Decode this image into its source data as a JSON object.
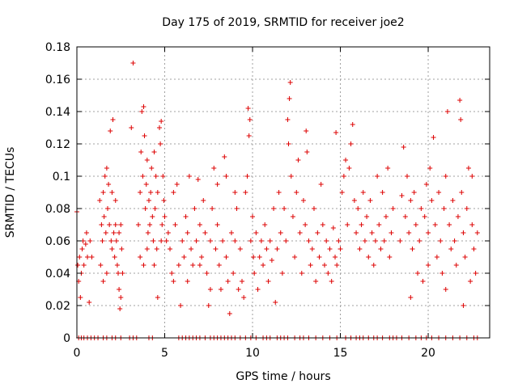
{
  "chart_data": {
    "type": "scatter",
    "title": "Day 175 of 2019, SRMTID for receiver joe2",
    "xlabel": "GPS time / hours",
    "ylabel": "SRMTID / TECUs",
    "xlim": [
      0,
      23.5
    ],
    "ylim": [
      0,
      0.18
    ],
    "xticks": [
      0,
      5,
      10,
      15,
      20
    ],
    "xtick_labels": [
      "0",
      "5",
      "10",
      "15",
      "20"
    ],
    "yticks": [
      0,
      0.02,
      0.04,
      0.06,
      0.08,
      0.1,
      0.12,
      0.14,
      0.16,
      0.18
    ],
    "ytick_labels": [
      "0",
      "0.02",
      "0.04",
      "0.06",
      "0.08",
      "0.1",
      "0.12",
      "0.14",
      "0.16",
      "0.18"
    ],
    "grid": true,
    "marker": "+",
    "series": [
      {
        "name": "SRMTID",
        "color": "#dd0000",
        "points": [
          [
            0.0,
            0.078
          ],
          [
            0.05,
            0.045
          ],
          [
            0.1,
            0.035
          ],
          [
            0.15,
            0.05
          ],
          [
            0.2,
            0.025
          ],
          [
            0.25,
            0.04
          ],
          [
            0.3,
            0.055
          ],
          [
            0.35,
            0.06
          ],
          [
            0.4,
            0.045
          ],
          [
            0.5,
            0.058
          ],
          [
            0.55,
            0.065
          ],
          [
            0.6,
            0.05
          ],
          [
            0.7,
            0.022
          ],
          [
            0.75,
            0.06
          ],
          [
            0.85,
            0.05
          ],
          [
            1.3,
            0.085
          ],
          [
            1.4,
            0.07
          ],
          [
            1.45,
            0.06
          ],
          [
            1.5,
            0.09
          ],
          [
            1.55,
            0.075
          ],
          [
            1.6,
            0.1
          ],
          [
            1.65,
            0.065
          ],
          [
            1.7,
            0.105
          ],
          [
            1.75,
            0.08
          ],
          [
            1.8,
            0.095
          ],
          [
            1.85,
            0.07
          ],
          [
            1.9,
            0.128
          ],
          [
            1.95,
            0.06
          ],
          [
            2.0,
            0.055
          ],
          [
            2.05,
            0.135
          ],
          [
            2.1,
            0.065
          ],
          [
            2.15,
            0.05
          ],
          [
            2.2,
            0.07
          ],
          [
            2.25,
            0.06
          ],
          [
            2.3,
            0.045
          ],
          [
            2.35,
            0.04
          ],
          [
            2.4,
            0.03
          ],
          [
            2.45,
            0.018
          ],
          [
            2.5,
            0.025
          ],
          [
            2.55,
            0.055
          ],
          [
            2.6,
            0.04
          ],
          [
            1.35,
            0.045
          ],
          [
            1.5,
            0.035
          ],
          [
            1.7,
            0.04
          ],
          [
            2.0,
            0.09
          ],
          [
            2.2,
            0.085
          ],
          [
            2.4,
            0.065
          ],
          [
            2.5,
            0.07
          ],
          [
            3.2,
            0.17
          ],
          [
            3.1,
            0.13
          ],
          [
            3.5,
            0.07
          ],
          [
            3.6,
            0.09
          ],
          [
            3.65,
            0.115
          ],
          [
            3.7,
            0.14
          ],
          [
            3.75,
            0.1
          ],
          [
            3.8,
            0.143
          ],
          [
            3.85,
            0.125
          ],
          [
            3.9,
            0.08
          ],
          [
            3.95,
            0.095
          ],
          [
            4.0,
            0.11
          ],
          [
            4.05,
            0.065
          ],
          [
            4.1,
            0.085
          ],
          [
            4.15,
            0.07
          ],
          [
            4.2,
            0.09
          ],
          [
            4.25,
            0.105
          ],
          [
            4.3,
            0.075
          ],
          [
            4.35,
            0.06
          ],
          [
            4.4,
            0.115
          ],
          [
            4.45,
            0.08
          ],
          [
            4.5,
            0.1
          ],
          [
            4.55,
            0.055
          ],
          [
            4.6,
            0.09
          ],
          [
            4.7,
            0.13
          ],
          [
            4.75,
            0.12
          ],
          [
            4.8,
            0.134
          ],
          [
            4.85,
            0.07
          ],
          [
            4.9,
            0.1
          ],
          [
            4.95,
            0.085
          ],
          [
            3.6,
            0.05
          ],
          [
            3.8,
            0.045
          ],
          [
            4.0,
            0.055
          ],
          [
            4.4,
            0.045
          ],
          [
            4.6,
            0.025
          ],
          [
            4.8,
            0.06
          ],
          [
            5.0,
            0.075
          ],
          [
            5.1,
            0.06
          ],
          [
            5.2,
            0.065
          ],
          [
            5.3,
            0.055
          ],
          [
            5.4,
            0.04
          ],
          [
            5.5,
            0.035
          ],
          [
            5.6,
            0.07
          ],
          [
            5.7,
            0.095
          ],
          [
            5.8,
            0.045
          ],
          [
            5.9,
            0.02
          ],
          [
            6.0,
            0.06
          ],
          [
            6.1,
            0.05
          ],
          [
            6.2,
            0.075
          ],
          [
            6.3,
            0.065
          ],
          [
            6.4,
            0.1
          ],
          [
            6.5,
            0.055
          ],
          [
            6.6,
            0.045
          ],
          [
            6.7,
            0.08
          ],
          [
            6.8,
            0.06
          ],
          [
            6.9,
            0.098
          ],
          [
            7.0,
            0.07
          ],
          [
            7.1,
            0.05
          ],
          [
            7.2,
            0.085
          ],
          [
            7.3,
            0.065
          ],
          [
            7.4,
            0.04
          ],
          [
            7.5,
            0.02
          ],
          [
            7.6,
            0.06
          ],
          [
            7.7,
            0.08
          ],
          [
            7.8,
            0.105
          ],
          [
            7.9,
            0.055
          ],
          [
            8.0,
            0.07
          ],
          [
            8.1,
            0.045
          ],
          [
            8.2,
            0.03
          ],
          [
            8.3,
            0.06
          ],
          [
            8.4,
            0.112
          ],
          [
            8.5,
            0.05
          ],
          [
            8.6,
            0.035
          ],
          [
            8.7,
            0.015
          ],
          [
            8.8,
            0.065
          ],
          [
            8.9,
            0.04
          ],
          [
            9.0,
            0.09
          ],
          [
            9.1,
            0.08
          ],
          [
            9.2,
            0.03
          ],
          [
            9.3,
            0.055
          ],
          [
            5.5,
            0.09
          ],
          [
            6.3,
            0.035
          ],
          [
            7.0,
            0.045
          ],
          [
            7.6,
            0.03
          ],
          [
            8.0,
            0.095
          ],
          [
            8.5,
            0.1
          ],
          [
            9.0,
            0.06
          ],
          [
            9.4,
            0.035
          ],
          [
            9.5,
            0.025
          ],
          [
            9.6,
            0.09
          ],
          [
            9.7,
            0.1
          ],
          [
            9.75,
            0.142
          ],
          [
            9.8,
            0.125
          ],
          [
            9.85,
            0.135
          ],
          [
            9.9,
            0.06
          ],
          [
            10.0,
            0.075
          ],
          [
            10.05,
            0.05
          ],
          [
            10.1,
            0.04
          ],
          [
            10.2,
            0.065
          ],
          [
            10.3,
            0.03
          ],
          [
            10.4,
            0.05
          ],
          [
            10.5,
            0.06
          ],
          [
            10.6,
            0.045
          ],
          [
            10.7,
            0.07
          ],
          [
            10.8,
            0.055
          ],
          [
            10.9,
            0.035
          ],
          [
            11.0,
            0.06
          ],
          [
            11.1,
            0.048
          ],
          [
            11.2,
            0.08
          ],
          [
            11.3,
            0.022
          ],
          [
            11.4,
            0.055
          ],
          [
            11.5,
            0.09
          ],
          [
            11.6,
            0.065
          ],
          [
            11.7,
            0.04
          ],
          [
            11.8,
            0.08
          ],
          [
            11.9,
            0.06
          ],
          [
            12.0,
            0.135
          ],
          [
            12.05,
            0.12
          ],
          [
            12.1,
            0.148
          ],
          [
            12.15,
            0.158
          ],
          [
            12.2,
            0.1
          ],
          [
            12.3,
            0.075
          ],
          [
            12.4,
            0.05
          ],
          [
            12.5,
            0.09
          ],
          [
            12.6,
            0.11
          ],
          [
            12.7,
            0.065
          ],
          [
            12.8,
            0.04
          ],
          [
            12.9,
            0.085
          ],
          [
            13.0,
            0.07
          ],
          [
            13.05,
            0.128
          ],
          [
            13.1,
            0.115
          ],
          [
            13.2,
            0.06
          ],
          [
            13.3,
            0.045
          ],
          [
            13.4,
            0.055
          ],
          [
            13.5,
            0.08
          ],
          [
            13.6,
            0.035
          ],
          [
            13.7,
            0.065
          ],
          [
            13.8,
            0.05
          ],
          [
            13.9,
            0.095
          ],
          [
            14.0,
            0.07
          ],
          [
            14.1,
            0.045
          ],
          [
            14.2,
            0.06
          ],
          [
            14.3,
            0.04
          ],
          [
            14.4,
            0.055
          ],
          [
            14.5,
            0.035
          ],
          [
            14.6,
            0.068
          ],
          [
            14.7,
            0.05
          ],
          [
            14.75,
            0.127
          ],
          [
            14.8,
            0.045
          ],
          [
            14.9,
            0.06
          ],
          [
            15.0,
            0.055
          ],
          [
            15.1,
            0.09
          ],
          [
            15.2,
            0.1
          ],
          [
            15.3,
            0.11
          ],
          [
            15.4,
            0.07
          ],
          [
            15.5,
            0.105
          ],
          [
            15.6,
            0.12
          ],
          [
            15.7,
            0.132
          ],
          [
            15.8,
            0.085
          ],
          [
            15.9,
            0.065
          ],
          [
            16.0,
            0.08
          ],
          [
            16.1,
            0.055
          ],
          [
            16.2,
            0.07
          ],
          [
            16.3,
            0.09
          ],
          [
            16.4,
            0.06
          ],
          [
            16.5,
            0.075
          ],
          [
            16.6,
            0.05
          ],
          [
            16.7,
            0.085
          ],
          [
            16.8,
            0.065
          ],
          [
            16.9,
            0.045
          ],
          [
            17.0,
            0.06
          ],
          [
            17.1,
            0.1
          ],
          [
            17.2,
            0.07
          ],
          [
            17.3,
            0.055
          ],
          [
            17.4,
            0.09
          ],
          [
            17.5,
            0.06
          ],
          [
            17.6,
            0.075
          ],
          [
            17.7,
            0.105
          ],
          [
            17.8,
            0.05
          ],
          [
            17.9,
            0.065
          ],
          [
            18.0,
            0.08
          ],
          [
            18.4,
            0.06
          ],
          [
            18.5,
            0.088
          ],
          [
            18.6,
            0.118
          ],
          [
            18.7,
            0.075
          ],
          [
            18.8,
            0.1
          ],
          [
            18.9,
            0.065
          ],
          [
            19.0,
            0.085
          ],
          [
            19.1,
            0.055
          ],
          [
            19.2,
            0.09
          ],
          [
            19.3,
            0.07
          ],
          [
            19.4,
            0.04
          ],
          [
            19.5,
            0.06
          ],
          [
            19.6,
            0.08
          ],
          [
            19.7,
            0.035
          ],
          [
            19.8,
            0.075
          ],
          [
            19.9,
            0.095
          ],
          [
            20.0,
            0.065
          ],
          [
            20.1,
            0.105
          ],
          [
            20.2,
            0.085
          ],
          [
            20.3,
            0.124
          ],
          [
            20.4,
            0.07
          ],
          [
            20.5,
            0.05
          ],
          [
            20.6,
            0.09
          ],
          [
            20.7,
            0.06
          ],
          [
            20.8,
            0.04
          ],
          [
            20.9,
            0.08
          ],
          [
            21.0,
            0.1
          ],
          [
            21.1,
            0.14
          ],
          [
            21.2,
            0.07
          ],
          [
            21.3,
            0.055
          ],
          [
            21.4,
            0.085
          ],
          [
            21.5,
            0.06
          ],
          [
            21.6,
            0.045
          ],
          [
            21.7,
            0.075
          ],
          [
            21.8,
            0.147
          ],
          [
            21.85,
            0.135
          ],
          [
            21.9,
            0.09
          ],
          [
            22.0,
            0.065
          ],
          [
            22.1,
            0.05
          ],
          [
            22.2,
            0.08
          ],
          [
            22.3,
            0.105
          ],
          [
            22.4,
            0.035
          ],
          [
            22.5,
            0.07
          ],
          [
            22.6,
            0.055
          ],
          [
            22.7,
            0.04
          ],
          [
            22.8,
            0.065
          ],
          [
            19.0,
            0.025
          ],
          [
            20.0,
            0.045
          ],
          [
            21.0,
            0.03
          ],
          [
            22.0,
            0.02
          ],
          [
            22.5,
            0.1
          ]
        ],
        "zero_points_x": [
          0.1,
          0.25,
          0.4,
          0.6,
          0.8,
          1.0,
          1.2,
          1.5,
          1.7,
          2.0,
          2.2,
          2.5,
          3.0,
          3.2,
          3.4,
          4.1,
          4.3,
          5.8,
          6.0,
          6.2,
          6.4,
          6.6,
          6.8,
          7.0,
          7.3,
          7.6,
          7.8,
          8.0,
          8.2,
          8.4,
          8.6,
          8.8,
          9.0,
          9.3,
          9.6,
          9.9,
          10.2,
          10.6,
          10.8,
          11.0,
          11.4,
          11.6,
          11.8,
          12.0,
          12.4,
          12.7,
          12.9,
          13.2,
          13.6,
          14.0,
          14.4,
          14.8,
          15.3,
          15.6,
          15.9,
          16.1,
          16.3,
          16.6,
          16.9,
          17.1,
          17.4,
          17.8,
          18.0,
          18.2,
          18.5,
          18.9,
          19.3,
          19.6,
          19.9,
          20.2,
          20.6,
          21.0,
          21.4,
          21.8,
          22.2,
          22.6,
          22.8
        ]
      }
    ]
  }
}
